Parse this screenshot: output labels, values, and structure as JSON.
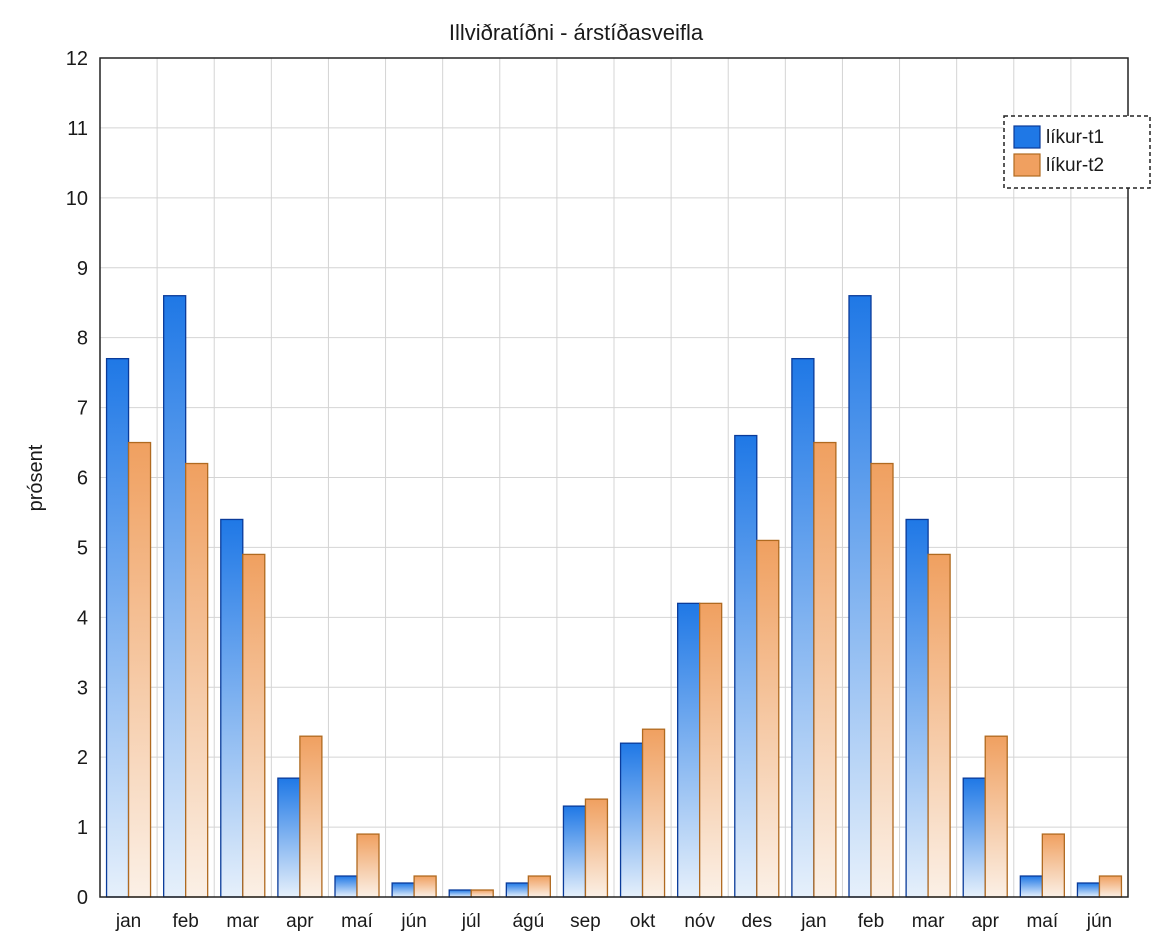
{
  "chart_data": {
    "type": "bar",
    "title": "Illviðratíðni - árstíðasveifla",
    "xlabel": "",
    "ylabel": "prósent",
    "ylim": [
      0,
      12
    ],
    "yticks": [
      0,
      1,
      2,
      3,
      4,
      5,
      6,
      7,
      8,
      9,
      10,
      11,
      12
    ],
    "grid": true,
    "legend_position": "top-right",
    "categories": [
      "jan",
      "feb",
      "mar",
      "apr",
      "maí",
      "jún",
      "júl",
      "ágú",
      "sep",
      "okt",
      "nóv",
      "des",
      "jan",
      "feb",
      "mar",
      "apr",
      "maí",
      "jún"
    ],
    "series": [
      {
        "name": "líkur-t1",
        "color": "#1f78e6",
        "stroke": "#0a3b9a",
        "values": [
          7.7,
          8.6,
          5.4,
          1.7,
          0.3,
          0.2,
          0.1,
          0.2,
          1.3,
          2.2,
          4.2,
          6.6,
          7.7,
          8.6,
          5.4,
          1.7,
          0.3,
          0.2
        ]
      },
      {
        "name": "líkur-t2",
        "color": "#f0a060",
        "stroke": "#b06a20",
        "values": [
          6.5,
          6.2,
          4.9,
          2.3,
          0.9,
          0.3,
          0.1,
          0.3,
          1.4,
          2.4,
          4.2,
          5.1,
          6.5,
          6.2,
          4.9,
          2.3,
          0.9,
          0.3
        ]
      }
    ]
  }
}
